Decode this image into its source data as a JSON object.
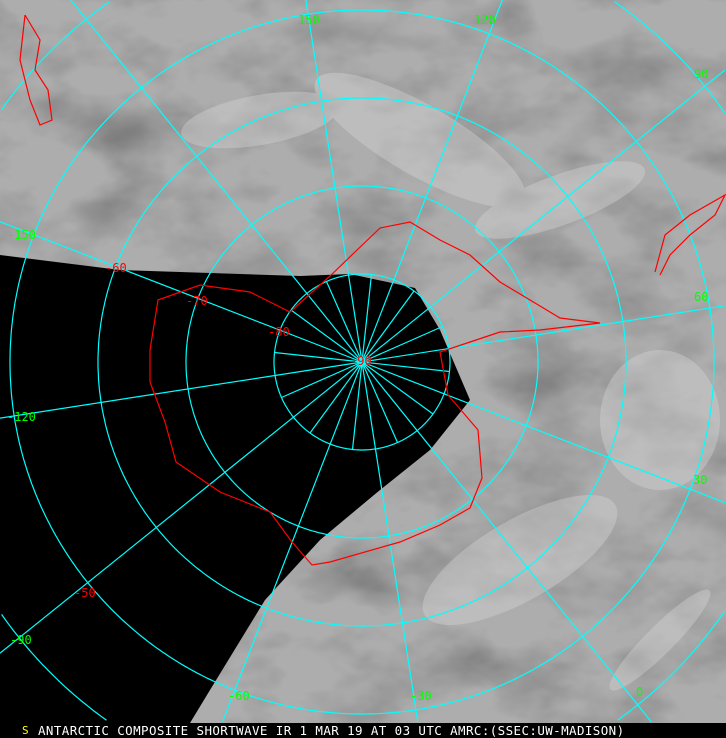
{
  "caption": "ANTARCTIC COMPOSITE SHORTWAVE IR 1 MAR 19 AT 03 UTC AMRC:(SSEC:UW-MADISON)",
  "logo_letter": "S",
  "colors": {
    "grid": "#00ffff",
    "coast": "#ff0000",
    "longitude_labels": "#00ff00",
    "latitude_labels": "#ff0000",
    "no_data": "#000000"
  },
  "longitude_labels": [
    "150",
    "120",
    "90",
    "60",
    "30",
    "0",
    "-30",
    "-60",
    "-90",
    "-120",
    "-150"
  ],
  "latitude_labels": [
    "-50",
    "-60",
    "-70",
    "-80",
    "-90"
  ]
}
